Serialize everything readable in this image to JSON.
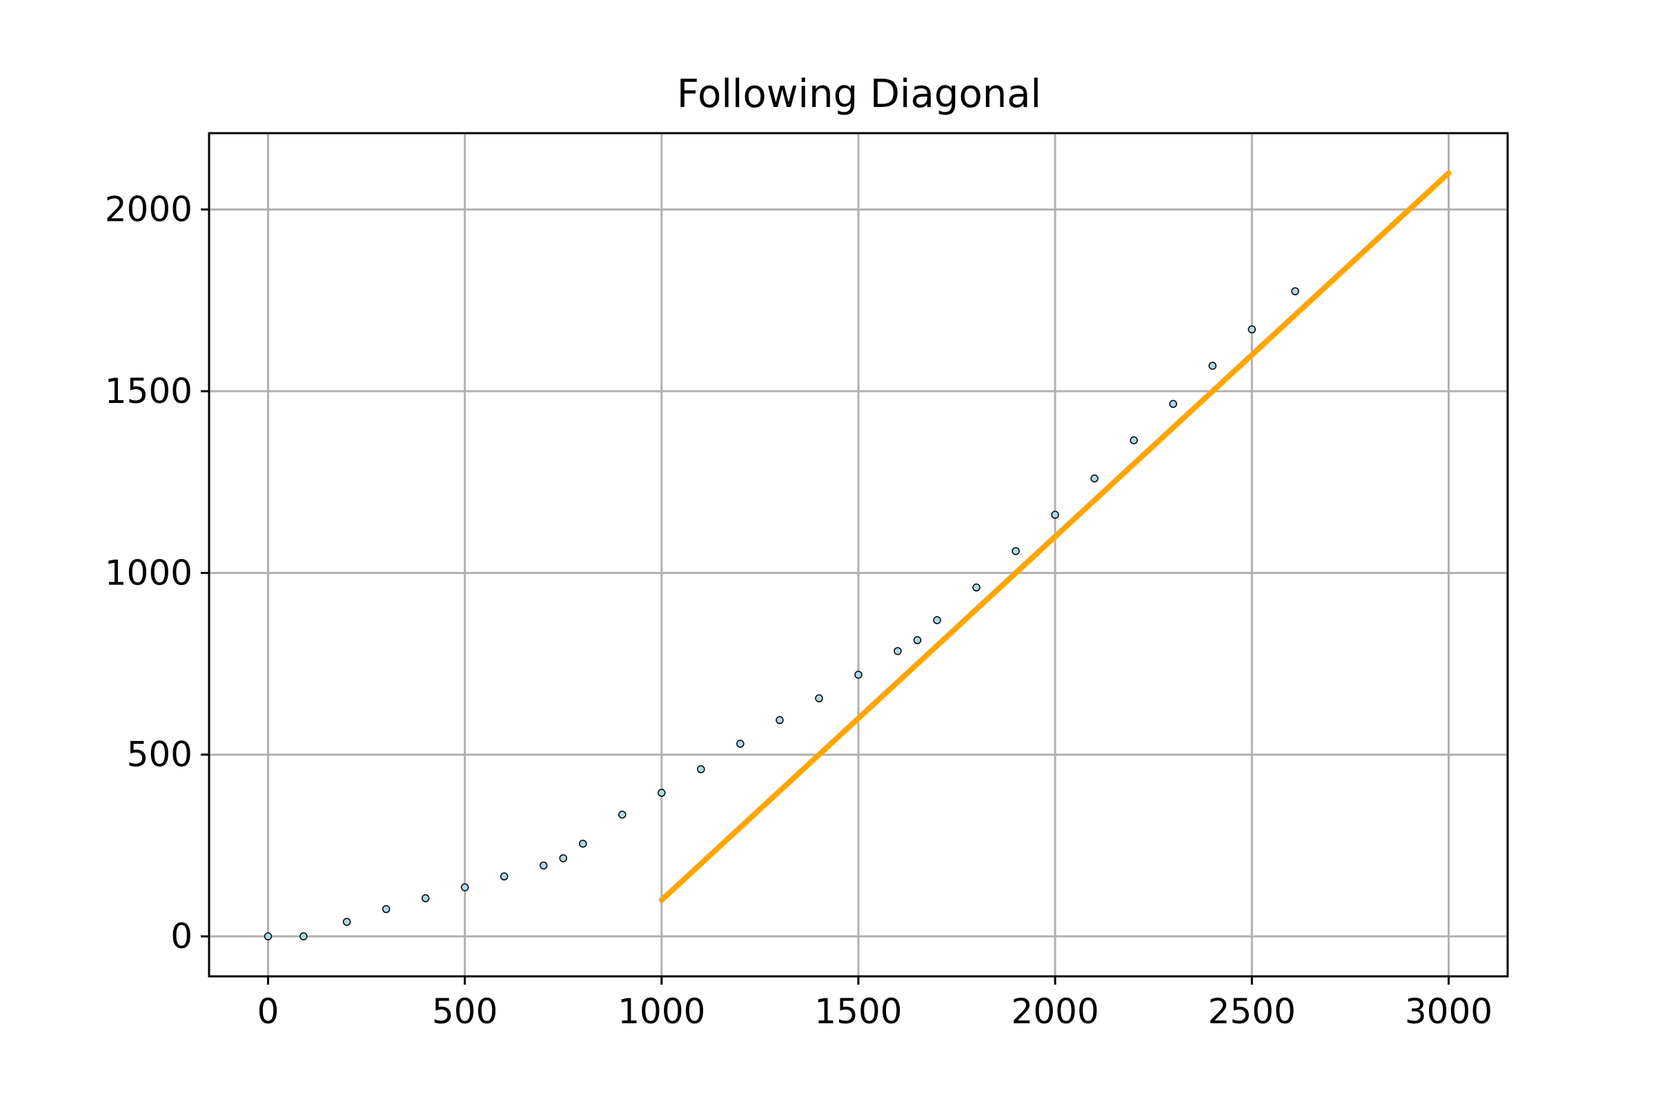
{
  "chart_data": {
    "type": "scatter",
    "title": "Following Diagonal",
    "xlabel": "",
    "ylabel": "",
    "xlim": [
      -150,
      3150
    ],
    "ylim": [
      -110,
      2210
    ],
    "grid": true,
    "xticks": [
      0,
      500,
      1000,
      1500,
      2000,
      2500,
      3000
    ],
    "yticks": [
      0,
      500,
      1000,
      1500,
      2000
    ],
    "xtick_labels": [
      "0",
      "500",
      "1000",
      "1500",
      "2000",
      "2500",
      "3000"
    ],
    "ytick_labels": [
      "0",
      "500",
      "1000",
      "1500",
      "2000"
    ],
    "series": [
      {
        "kind": "scatter",
        "color": "#add8e6",
        "edgecolor": "#000000",
        "x": [
          0,
          90,
          200,
          300,
          400,
          500,
          600,
          700,
          750,
          800,
          900,
          1000,
          1100,
          1200,
          1300,
          1400,
          1500,
          1600,
          1650,
          1700,
          1800,
          1900,
          2000,
          2100,
          2200,
          2300,
          2400,
          2500,
          2610
        ],
        "y": [
          0,
          0,
          40,
          75,
          105,
          135,
          165,
          195,
          215,
          255,
          335,
          395,
          460,
          530,
          595,
          655,
          720,
          785,
          815,
          870,
          960,
          1060,
          1160,
          1260,
          1365,
          1465,
          1570,
          1670,
          1775
        ]
      },
      {
        "kind": "line",
        "color": "#ffa500",
        "x": [
          1000,
          3000
        ],
        "y": [
          100,
          2100
        ]
      }
    ]
  }
}
